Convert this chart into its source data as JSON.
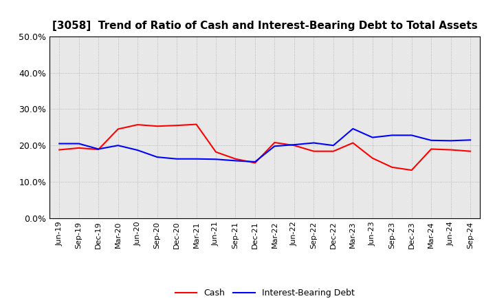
{
  "title": "[3058]  Trend of Ratio of Cash and Interest-Bearing Debt to Total Assets",
  "x_labels": [
    "Jun-19",
    "Sep-19",
    "Dec-19",
    "Mar-20",
    "Jun-20",
    "Sep-20",
    "Dec-20",
    "Mar-21",
    "Jun-21",
    "Sep-21",
    "Dec-21",
    "Mar-22",
    "Jun-22",
    "Sep-22",
    "Dec-22",
    "Mar-23",
    "Jun-23",
    "Sep-23",
    "Dec-23",
    "Mar-24",
    "Jun-24",
    "Sep-24"
  ],
  "cash": [
    0.188,
    0.193,
    0.189,
    0.245,
    0.257,
    0.253,
    0.255,
    0.258,
    0.182,
    0.163,
    0.152,
    0.208,
    0.2,
    0.184,
    0.184,
    0.207,
    0.165,
    0.14,
    0.132,
    0.19,
    0.188,
    0.184
  ],
  "interest_bearing_debt": [
    0.205,
    0.205,
    0.19,
    0.2,
    0.187,
    0.168,
    0.163,
    0.163,
    0.162,
    0.158,
    0.155,
    0.198,
    0.202,
    0.207,
    0.2,
    0.246,
    0.222,
    0.228,
    0.228,
    0.214,
    0.213,
    0.215
  ],
  "cash_color": "#ff0000",
  "debt_color": "#0000ff",
  "ylim": [
    0.0,
    0.5
  ],
  "yticks": [
    0.0,
    0.1,
    0.2,
    0.3,
    0.4,
    0.5
  ],
  "background_color": "#ffffff",
  "plot_bg_color": "#e8e8e8",
  "grid_color": "#aaaaaa",
  "legend_cash": "Cash",
  "legend_debt": "Interest-Bearing Debt",
  "title_fontsize": 11,
  "tick_fontsize": 8,
  "linewidth": 1.5
}
